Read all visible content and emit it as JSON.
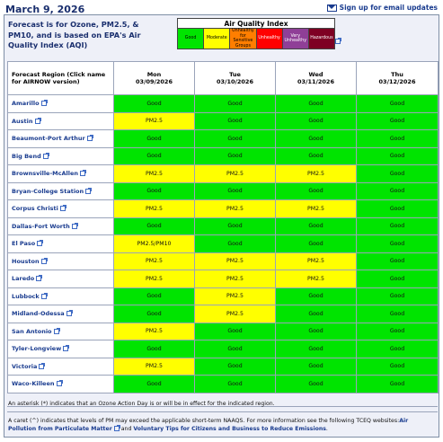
{
  "header": {
    "date": "March 9, 2026",
    "signup_label": "Sign up for email updates",
    "forecast_note": "Forecast is for Ozone, PM2.5, & PM10, and is based on EPA's Air Quality Index (AQI)"
  },
  "legend": {
    "title": "Air Quality Index",
    "items": [
      {
        "label": "Good",
        "color": "#00e400"
      },
      {
        "label": "Moderate",
        "color": "#ffff00"
      },
      {
        "label": "Unhealthy for Sensitive Groups",
        "color": "#ff7e00"
      },
      {
        "label": "Unhealthy",
        "color": "#ff0000"
      },
      {
        "label": "Very Unhealthy",
        "color": "#8f3f97"
      },
      {
        "label": "Hazardous",
        "color": "#7e0023"
      }
    ]
  },
  "table": {
    "region_header": "Forecast Region (Click name for AIRNOW version)",
    "days": [
      {
        "day": "Mon",
        "date": "03/09/2026"
      },
      {
        "day": "Tue",
        "date": "03/10/2026"
      },
      {
        "day": "Wed",
        "date": "03/11/2026"
      },
      {
        "day": "Thu",
        "date": "03/12/2026"
      }
    ],
    "rows": [
      {
        "region": "Amarillo",
        "cells": [
          "Good",
          "Good",
          "Good",
          "Good"
        ]
      },
      {
        "region": "Austin",
        "cells": [
          "PM2.5",
          "Good",
          "Good",
          "Good"
        ]
      },
      {
        "region": "Beaumont-Port Arthur",
        "cells": [
          "Good",
          "Good",
          "Good",
          "Good"
        ]
      },
      {
        "region": "Big Bend",
        "cells": [
          "Good",
          "Good",
          "Good",
          "Good"
        ]
      },
      {
        "region": "Brownsville-McAllen",
        "cells": [
          "PM2.5",
          "PM2.5",
          "PM2.5",
          "Good"
        ]
      },
      {
        "region": "Bryan-College Station",
        "cells": [
          "Good",
          "Good",
          "Good",
          "Good"
        ]
      },
      {
        "region": "Corpus Christi",
        "cells": [
          "PM2.5",
          "PM2.5",
          "PM2.5",
          "Good"
        ]
      },
      {
        "region": "Dallas-Fort Worth",
        "cells": [
          "Good",
          "Good",
          "Good",
          "Good"
        ]
      },
      {
        "region": "El Paso",
        "cells": [
          "PM2.5/PM10",
          "Good",
          "Good",
          "Good"
        ]
      },
      {
        "region": "Houston",
        "cells": [
          "PM2.5",
          "PM2.5",
          "PM2.5",
          "Good"
        ]
      },
      {
        "region": "Laredo",
        "cells": [
          "PM2.5",
          "PM2.5",
          "PM2.5",
          "Good"
        ]
      },
      {
        "region": "Lubbock",
        "cells": [
          "Good",
          "PM2.5",
          "Good",
          "Good"
        ]
      },
      {
        "region": "Midland-Odessa",
        "cells": [
          "Good",
          "PM2.5",
          "Good",
          "Good"
        ]
      },
      {
        "region": "San Antonio",
        "cells": [
          "PM2.5",
          "Good",
          "Good",
          "Good"
        ]
      },
      {
        "region": "Tyler-Longview",
        "cells": [
          "Good",
          "Good",
          "Good",
          "Good"
        ]
      },
      {
        "region": "Victoria",
        "cells": [
          "PM2.5",
          "Good",
          "Good",
          "Good"
        ]
      },
      {
        "region": "Waco-Killeen",
        "cells": [
          "Good",
          "Good",
          "Good",
          "Good"
        ]
      }
    ]
  },
  "notes": {
    "asterisk": "An asterisk (*) indicates that an Ozone Action Day is or will be in effect for the indicated region.",
    "caret": "A caret (^) indicates that levels of PM may exceed the applicable short-term NAAQS. For more information see the following TCEQ websites:",
    "link1": "Air Pollution from Particulate Matter",
    "and": "and",
    "link2": "Voluntary Tips for Citizens and Business to Reduce Emissions",
    "period": "."
  }
}
